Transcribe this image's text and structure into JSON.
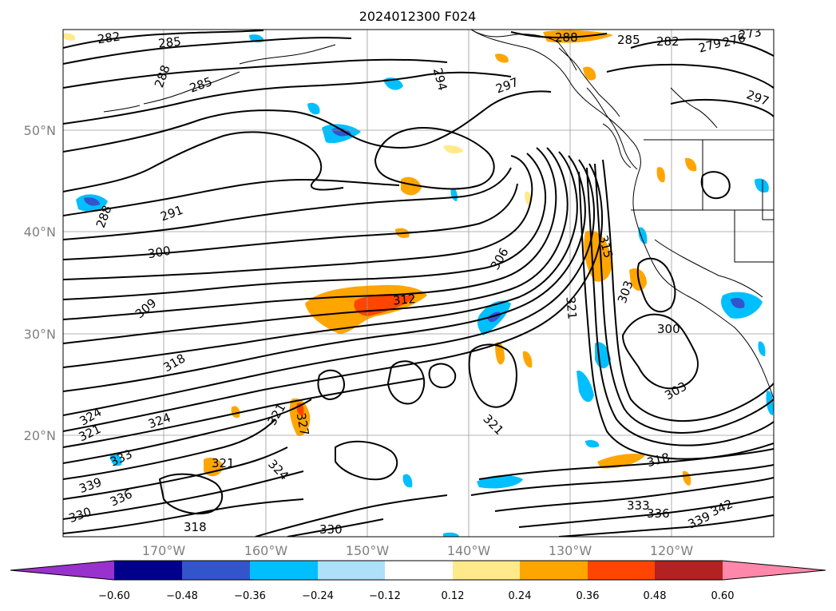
{
  "title": "2024012300 F024",
  "lat_labels": [
    "50°N",
    "40°N",
    "30°N",
    "20°N"
  ],
  "lon_labels": [
    "170°W",
    "160°W",
    "150°W",
    "140°W",
    "130°W",
    "120°W"
  ],
  "colorbar": {
    "colors": [
      "#9932cc",
      "#00008b",
      "#3355cc",
      "#00bfff",
      "#aee0fa",
      "#ffffff",
      "#ffe98a",
      "#ffa500",
      "#ff4500",
      "#b22222",
      "#ff88aa"
    ],
    "ticks": [
      "−0.60",
      "−0.48",
      "−0.36",
      "−0.24",
      "−0.12",
      "0.12",
      "0.24",
      "0.36",
      "0.48",
      "0.60"
    ]
  },
  "contour_labels": [
    "282",
    "285",
    "288",
    "285",
    "294",
    "297",
    "291",
    "288",
    "300",
    "306",
    "315",
    "312",
    "309",
    "303",
    "321",
    "300",
    "318",
    "303",
    "324",
    "321",
    "324",
    "321",
    "327",
    "333",
    "321",
    "339",
    "324",
    "336",
    "321",
    "330",
    "318",
    "330",
    "333",
    "336",
    "339",
    "342",
    "318",
    "285",
    "282",
    "279",
    "276",
    "273",
    "288",
    "297"
  ]
}
